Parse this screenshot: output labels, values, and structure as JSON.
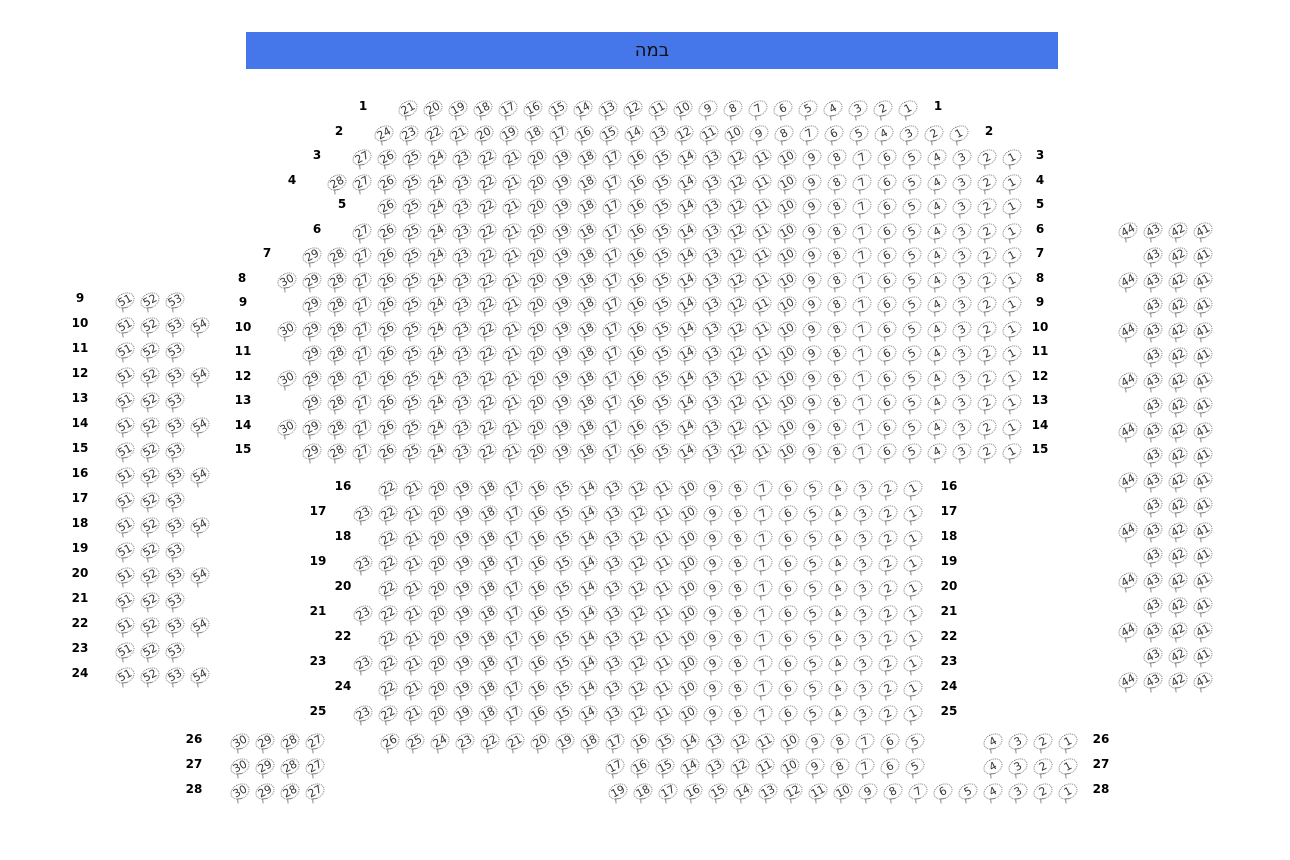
{
  "stage": {
    "label": "במה",
    "color": "#4577ea"
  },
  "sections": [
    {
      "id": "main-upper",
      "rows": [
        {
          "row": "1",
          "seats": [
            [
              21,
              1
            ]
          ]
        },
        {
          "row": "2",
          "seats": [
            [
              24,
              1
            ]
          ]
        },
        {
          "row": "3",
          "seats": [
            [
              27,
              1
            ]
          ]
        },
        {
          "row": "4",
          "seats": [
            [
              28,
              1
            ]
          ]
        },
        {
          "row": "5",
          "seats": [
            [
              26,
              1
            ]
          ]
        },
        {
          "row": "6",
          "seats": [
            [
              27,
              1
            ]
          ]
        },
        {
          "row": "7",
          "seats": [
            [
              29,
              1
            ]
          ]
        },
        {
          "row": "8",
          "seats": [
            [
              30,
              1
            ]
          ]
        },
        {
          "row": "9",
          "seats": [
            [
              29,
              1
            ]
          ]
        },
        {
          "row": "10",
          "seats": [
            [
              30,
              1
            ]
          ]
        },
        {
          "row": "11",
          "seats": [
            [
              29,
              1
            ]
          ]
        },
        {
          "row": "12",
          "seats": [
            [
              30,
              1
            ]
          ]
        },
        {
          "row": "13",
          "seats": [
            [
              29,
              1
            ]
          ]
        },
        {
          "row": "14",
          "seats": [
            [
              30,
              1
            ]
          ]
        },
        {
          "row": "15",
          "seats": [
            [
              29,
              1
            ]
          ]
        }
      ]
    },
    {
      "id": "main-lower",
      "rows": [
        {
          "row": "16",
          "seats": [
            [
              22,
              1
            ]
          ]
        },
        {
          "row": "17",
          "seats": [
            [
              23,
              1
            ]
          ]
        },
        {
          "row": "18",
          "seats": [
            [
              22,
              1
            ]
          ]
        },
        {
          "row": "19",
          "seats": [
            [
              23,
              1
            ]
          ]
        },
        {
          "row": "20",
          "seats": [
            [
              22,
              1
            ]
          ]
        },
        {
          "row": "21",
          "seats": [
            [
              23,
              1
            ]
          ]
        },
        {
          "row": "22",
          "seats": [
            [
              22,
              1
            ]
          ]
        },
        {
          "row": "23",
          "seats": [
            [
              23,
              1
            ]
          ]
        },
        {
          "row": "24",
          "seats": [
            [
              22,
              1
            ]
          ]
        },
        {
          "row": "25",
          "seats": [
            [
              23,
              1
            ]
          ]
        }
      ]
    },
    {
      "id": "rear",
      "rows": [
        {
          "row": "26",
          "seats": [
            [
              30,
              27
            ],
            [
              26,
              5
            ],
            [
              4,
              1
            ]
          ]
        },
        {
          "row": "27",
          "seats": [
            [
              30,
              27
            ],
            [
              17,
              5
            ],
            [
              4,
              1
            ]
          ]
        },
        {
          "row": "28",
          "seats": [
            [
              30,
              27
            ],
            [
              19,
              1
            ]
          ]
        }
      ]
    },
    {
      "id": "left-side",
      "rows": [
        {
          "row": "9",
          "seats": [
            [
              51,
              53
            ]
          ]
        },
        {
          "row": "10",
          "seats": [
            [
              51,
              54
            ]
          ]
        },
        {
          "row": "11",
          "seats": [
            [
              51,
              53
            ]
          ]
        },
        {
          "row": "12",
          "seats": [
            [
              51,
              54
            ]
          ]
        },
        {
          "row": "13",
          "seats": [
            [
              51,
              53
            ]
          ]
        },
        {
          "row": "14",
          "seats": [
            [
              51,
              54
            ]
          ]
        },
        {
          "row": "15",
          "seats": [
            [
              51,
              53
            ]
          ]
        },
        {
          "row": "16",
          "seats": [
            [
              51,
              54
            ]
          ]
        },
        {
          "row": "17",
          "seats": [
            [
              51,
              53
            ]
          ]
        },
        {
          "row": "18",
          "seats": [
            [
              51,
              54
            ]
          ]
        },
        {
          "row": "19",
          "seats": [
            [
              51,
              53
            ]
          ]
        },
        {
          "row": "20",
          "seats": [
            [
              51,
              54
            ]
          ]
        },
        {
          "row": "21",
          "seats": [
            [
              51,
              53
            ]
          ]
        },
        {
          "row": "22",
          "seats": [
            [
              51,
              54
            ]
          ]
        },
        {
          "row": "23",
          "seats": [
            [
              51,
              53
            ]
          ]
        },
        {
          "row": "24",
          "seats": [
            [
              51,
              54
            ]
          ]
        }
      ]
    },
    {
      "id": "right-side",
      "rows": [
        {
          "seats": [
            [
              44,
              41
            ]
          ]
        },
        {
          "seats": [
            [
              43,
              41
            ]
          ]
        },
        {
          "seats": [
            [
              44,
              41
            ]
          ]
        },
        {
          "seats": [
            [
              43,
              41
            ]
          ]
        },
        {
          "seats": [
            [
              44,
              41
            ]
          ]
        },
        {
          "seats": [
            [
              43,
              41
            ]
          ]
        },
        {
          "seats": [
            [
              44,
              41
            ]
          ]
        },
        {
          "seats": [
            [
              43,
              41
            ]
          ]
        },
        {
          "seats": [
            [
              44,
              41
            ]
          ]
        },
        {
          "seats": [
            [
              43,
              41
            ]
          ]
        },
        {
          "seats": [
            [
              44,
              41
            ]
          ]
        },
        {
          "seats": [
            [
              43,
              41
            ]
          ]
        },
        {
          "seats": [
            [
              44,
              41
            ]
          ]
        },
        {
          "seats": [
            [
              43,
              41
            ]
          ]
        },
        {
          "seats": [
            [
              44,
              41
            ]
          ]
        },
        {
          "seats": [
            [
              43,
              41
            ]
          ]
        },
        {
          "seats": [
            [
              44,
              41
            ]
          ]
        },
        {
          "seats": [
            [
              43,
              41
            ]
          ]
        },
        {
          "seats": [
            [
              44,
              41
            ]
          ]
        }
      ]
    }
  ]
}
